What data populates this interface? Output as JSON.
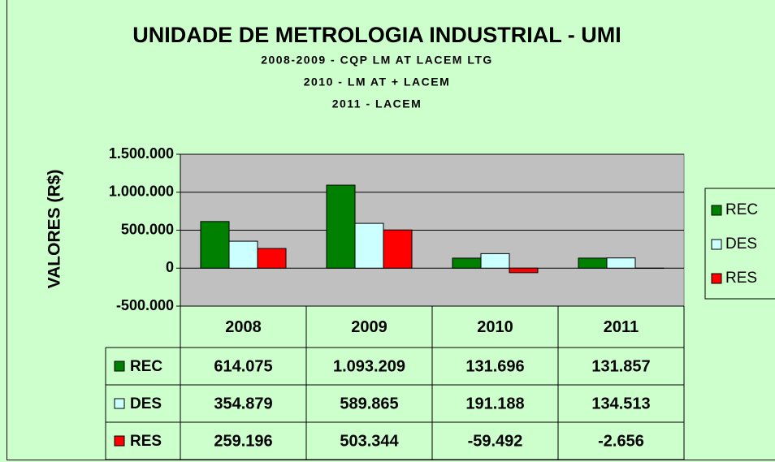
{
  "chart_data": {
    "type": "bar",
    "title": "UNIDADE DE METROLOGIA INDUSTRIAL - UMI",
    "subtitle": [
      "2008-2009 - CQP LM AT LACEM LTG",
      "2010 - LM AT + LACEM",
      "2011 - LACEM"
    ],
    "y_label": "VALORES (R$)",
    "categories": [
      "2008",
      "2009",
      "2010",
      "2011"
    ],
    "series": [
      {
        "name": "REC",
        "color": "#008000",
        "values": [
          614075,
          1093209,
          131696,
          131857
        ],
        "value_labels": [
          "614.075",
          "1.093.209",
          "131.696",
          "131.857"
        ]
      },
      {
        "name": "DES",
        "color": "#ccffff",
        "values": [
          354879,
          589865,
          191188,
          134513
        ],
        "value_labels": [
          "354.879",
          "589.865",
          "191.188",
          "134.513"
        ]
      },
      {
        "name": "RES",
        "color": "#ff0000",
        "values": [
          259196,
          503344,
          -59492,
          -2656
        ],
        "value_labels": [
          "259.196",
          "503.344",
          "-59.492",
          "-2.656"
        ]
      }
    ],
    "ylim": [
      -500000,
      1500000
    ],
    "yticks": [
      {
        "value": -500000,
        "label": "-500.000"
      },
      0,
      {
        "value": 500000,
        "label": "500.000"
      },
      {
        "value": 1000000,
        "label": "1.000.000"
      },
      {
        "value": 1500000,
        "label": "1.500.000"
      }
    ],
    "grid": true,
    "legend": "right",
    "data_table": true
  }
}
